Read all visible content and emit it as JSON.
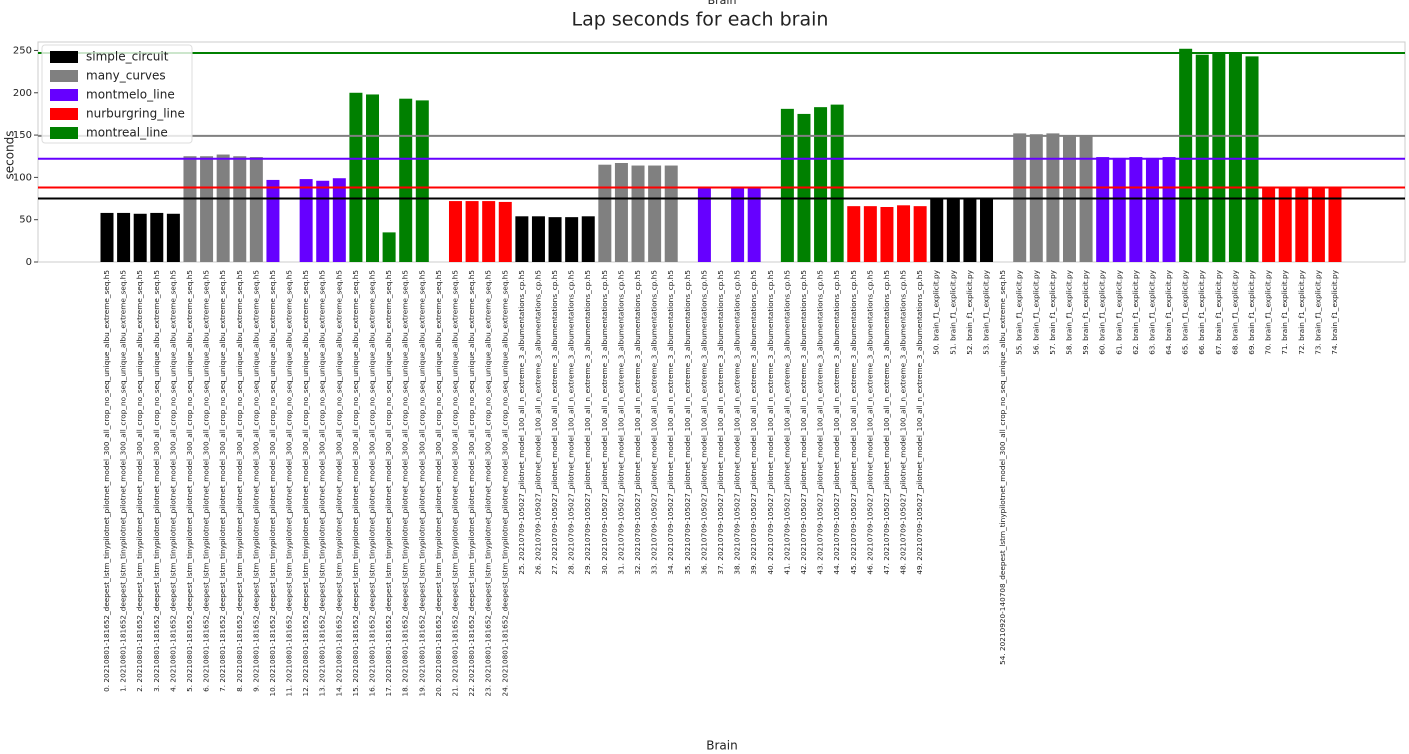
{
  "chart_data": {
    "type": "bar",
    "title": "Lap seconds for each brain",
    "x_label": "Brain",
    "y_label": "seconds",
    "ylim": [
      0,
      260
    ],
    "yticks": [
      0,
      50,
      100,
      150,
      200,
      250
    ],
    "legend": "upper left",
    "categories": [
      "0. 20210801-181652_deepest_lstm_tinypilotnet_pilotnet_model_300_all_crop_no_seq_unique_albu_extreme_seq.h5",
      "1. 20210801-181652_deepest_lstm_tinypilotnet_pilotnet_model_300_all_crop_no_seq_unique_albu_extreme_seq.h5",
      "2. 20210801-181652_deepest_lstm_tinypilotnet_pilotnet_model_300_all_crop_no_seq_unique_albu_extreme_seq.h5",
      "3. 20210801-181652_deepest_lstm_tinypilotnet_pilotnet_model_300_all_crop_no_seq_unique_albu_extreme_seq.h5",
      "4. 20210801-181652_deepest_lstm_tinypilotnet_pilotnet_model_300_all_crop_no_seq_unique_albu_extreme_seq.h5",
      "5. 20210801-181652_deepest_lstm_tinypilotnet_pilotnet_model_300_all_crop_no_seq_unique_albu_extreme_seq.h5",
      "6. 20210801-181652_deepest_lstm_tinypilotnet_pilotnet_model_300_all_crop_no_seq_unique_albu_extreme_seq.h5",
      "7. 20210801-181652_deepest_lstm_tinypilotnet_pilotnet_model_300_all_crop_no_seq_unique_albu_extreme_seq.h5",
      "8. 20210801-181652_deepest_lstm_tinypilotnet_pilotnet_model_300_all_crop_no_seq_unique_albu_extreme_seq.h5",
      "9. 20210801-181652_deepest_lstm_tinypilotnet_pilotnet_model_300_all_crop_no_seq_unique_albu_extreme_seq.h5",
      "10. 20210801-181652_deepest_lstm_tinypilotnet_pilotnet_model_300_all_crop_no_seq_unique_albu_extreme_seq.h5",
      "11. 20210801-181652_deepest_lstm_tinypilotnet_pilotnet_model_300_all_crop_no_seq_unique_albu_extreme_seq.h5",
      "12. 20210801-181652_deepest_lstm_tinypilotnet_pilotnet_model_300_all_crop_no_seq_unique_albu_extreme_seq.h5",
      "13. 20210801-181652_deepest_lstm_tinypilotnet_pilotnet_model_300_all_crop_no_seq_unique_albu_extreme_seq.h5",
      "14. 20210801-181652_deepest_lstm_tinypilotnet_pilotnet_model_300_all_crop_no_seq_unique_albu_extreme_seq.h5",
      "15. 20210801-181652_deepest_lstm_tinypilotnet_pilotnet_model_300_all_crop_no_seq_unique_albu_extreme_seq.h5",
      "16. 20210801-181652_deepest_lstm_tinypilotnet_pilotnet_model_300_all_crop_no_seq_unique_albu_extreme_seq.h5",
      "17. 20210801-181652_deepest_lstm_tinypilotnet_pilotnet_model_300_all_crop_no_seq_unique_albu_extreme_seq.h5",
      "18. 20210801-181652_deepest_lstm_tinypilotnet_pilotnet_model_300_all_crop_no_seq_unique_albu_extreme_seq.h5",
      "19. 20210801-181652_deepest_lstm_tinypilotnet_pilotnet_model_300_all_crop_no_seq_unique_albu_extreme_seq.h5",
      "20. 20210801-181652_deepest_lstm_tinypilotnet_pilotnet_model_300_all_crop_no_seq_unique_albu_extreme_seq.h5",
      "21. 20210801-181652_deepest_lstm_tinypilotnet_pilotnet_model_300_all_crop_no_seq_unique_albu_extreme_seq.h5",
      "22. 20210801-181652_deepest_lstm_tinypilotnet_pilotnet_model_300_all_crop_no_seq_unique_albu_extreme_seq.h5",
      "23. 20210801-181652_deepest_lstm_tinypilotnet_pilotnet_model_300_all_crop_no_seq_unique_albu_extreme_seq.h5",
      "24. 20210801-181652_deepest_lstm_tinypilotnet_pilotnet_model_300_all_crop_no_seq_unique_albu_extreme_seq.h5",
      "25. 20210709-105027_pilotnet_model_100_all_n_extreme_3_albumentations_cp.h5",
      "26. 20210709-105027_pilotnet_model_100_all_n_extreme_3_albumentations_cp.h5",
      "27. 20210709-105027_pilotnet_model_100_all_n_extreme_3_albumentations_cp.h5",
      "28. 20210709-105027_pilotnet_model_100_all_n_extreme_3_albumentations_cp.h5",
      "29. 20210709-105027_pilotnet_model_100_all_n_extreme_3_albumentations_cp.h5",
      "30. 20210709-105027_pilotnet_model_100_all_n_extreme_3_albumentations_cp.h5",
      "31. 20210709-105027_pilotnet_model_100_all_n_extreme_3_albumentations_cp.h5",
      "32. 20210709-105027_pilotnet_model_100_all_n_extreme_3_albumentations_cp.h5",
      "33. 20210709-105027_pilotnet_model_100_all_n_extreme_3_albumentations_cp.h5",
      "34. 20210709-105027_pilotnet_model_100_all_n_extreme_3_albumentations_cp.h5",
      "35. 20210709-105027_pilotnet_model_100_all_n_extreme_3_albumentations_cp.h5",
      "36. 20210709-105027_pilotnet_model_100_all_n_extreme_3_albumentations_cp.h5",
      "37. 20210709-105027_pilotnet_model_100_all_n_extreme_3_albumentations_cp.h5",
      "38. 20210709-105027_pilotnet_model_100_all_n_extreme_3_albumentations_cp.h5",
      "39. 20210709-105027_pilotnet_model_100_all_n_extreme_3_albumentations_cp.h5",
      "40. 20210709-105027_pilotnet_model_100_all_n_extreme_3_albumentations_cp.h5",
      "41. 20210709-105027_pilotnet_model_100_all_n_extreme_3_albumentations_cp.h5",
      "42. 20210709-105027_pilotnet_model_100_all_n_extreme_3_albumentations_cp.h5",
      "43. 20210709-105027_pilotnet_model_100_all_n_extreme_3_albumentations_cp.h5",
      "44. 20210709-105027_pilotnet_model_100_all_n_extreme_3_albumentations_cp.h5",
      "45. 20210709-105027_pilotnet_model_100_all_n_extreme_3_albumentations_cp.h5",
      "46. 20210709-105027_pilotnet_model_100_all_n_extreme_3_albumentations_cp.h5",
      "47. 20210709-105027_pilotnet_model_100_all_n_extreme_3_albumentations_cp.h5",
      "48. 20210709-105027_pilotnet_model_100_all_n_extreme_3_albumentations_cp.h5",
      "49. 20210709-105027_pilotnet_model_100_all_n_extreme_3_albumentations_cp.h5",
      "50. brain_f1_explicit.py",
      "51. brain_f1_explicit.py",
      "52. brain_f1_explicit.py",
      "53. brain_f1_explicit.py",
      "54. 20210920-140708_deepest_lstm_tinypilotnet_model_300_all_crop_no_seq_unique_albu_extreme_seq.h5",
      "55. brain_f1_explicit.py",
      "56. brain_f1_explicit.py",
      "57. brain_f1_explicit.py",
      "58. brain_f1_explicit.py",
      "59. brain_f1_explicit.py",
      "60. brain_f1_explicit.py",
      "61. brain_f1_explicit.py",
      "62. brain_f1_explicit.py",
      "63. brain_f1_explicit.py",
      "64. brain_f1_explicit.py",
      "65. brain_f1_explicit.py",
      "66. brain_f1_explicit.py",
      "67. brain_f1_explicit.py",
      "68. brain_f1_explicit.py",
      "69. brain_f1_explicit.py",
      "70. brain_f1_explicit.py",
      "71. brain_f1_explicit.py",
      "72. brain_f1_explicit.py",
      "73. brain_f1_explicit.py",
      "74. brain_f1_explicit.py"
    ],
    "series": [
      {
        "name": "simple_circuit",
        "color": "#000000",
        "reference": 75,
        "values": [
          58,
          58,
          57,
          58,
          57,
          null,
          null,
          null,
          null,
          null,
          null,
          null,
          null,
          null,
          null,
          null,
          null,
          null,
          null,
          null,
          null,
          null,
          null,
          null,
          null,
          54,
          54,
          53,
          53,
          54,
          null,
          null,
          null,
          null,
          null,
          null,
          null,
          null,
          null,
          null,
          null,
          null,
          null,
          null,
          null,
          null,
          null,
          null,
          null,
          null,
          74,
          74,
          74,
          74,
          null,
          null,
          null,
          null,
          null,
          null,
          null,
          null,
          null,
          null,
          null,
          null,
          null,
          null,
          null,
          null,
          null,
          null,
          null,
          null,
          null
        ]
      },
      {
        "name": "many_curves",
        "color": "#808080",
        "reference": 149,
        "values": [
          null,
          null,
          null,
          null,
          null,
          125,
          125,
          127,
          125,
          124,
          null,
          null,
          null,
          null,
          null,
          null,
          null,
          null,
          null,
          null,
          null,
          null,
          null,
          null,
          null,
          null,
          null,
          null,
          null,
          null,
          115,
          117,
          114,
          114,
          114,
          null,
          null,
          null,
          null,
          null,
          null,
          null,
          null,
          null,
          null,
          null,
          null,
          null,
          null,
          null,
          null,
          null,
          null,
          null,
          null,
          152,
          151,
          152,
          150,
          150,
          null,
          null,
          null,
          null,
          null,
          null,
          null,
          null,
          null,
          null,
          null,
          null,
          null,
          null,
          null
        ]
      },
      {
        "name": "montmelo_line",
        "color": "#6600ff",
        "reference": 122,
        "values": [
          null,
          null,
          null,
          null,
          null,
          null,
          null,
          null,
          null,
          null,
          97,
          null,
          98,
          96,
          99,
          null,
          null,
          null,
          null,
          null,
          null,
          null,
          null,
          null,
          null,
          null,
          null,
          null,
          null,
          null,
          null,
          null,
          null,
          null,
          null,
          null,
          89,
          null,
          87,
          87,
          null,
          null,
          null,
          null,
          null,
          null,
          null,
          null,
          null,
          null,
          null,
          null,
          null,
          null,
          null,
          null,
          null,
          null,
          null,
          null,
          124,
          123,
          124,
          123,
          124,
          null,
          null,
          null,
          null,
          null,
          null,
          null,
          null,
          null,
          null
        ]
      },
      {
        "name": "nurburgring_line",
        "color": "#ff0000",
        "reference": 88,
        "values": [
          null,
          null,
          null,
          null,
          null,
          null,
          null,
          null,
          null,
          null,
          null,
          null,
          null,
          null,
          null,
          null,
          null,
          null,
          null,
          null,
          null,
          72,
          72,
          72,
          71,
          null,
          null,
          null,
          null,
          null,
          null,
          null,
          null,
          null,
          null,
          null,
          null,
          null,
          null,
          null,
          null,
          null,
          null,
          null,
          null,
          66,
          66,
          65,
          67,
          66,
          null,
          null,
          null,
          null,
          null,
          null,
          null,
          null,
          null,
          null,
          null,
          null,
          null,
          null,
          null,
          null,
          null,
          null,
          null,
          null,
          87,
          87,
          87,
          87,
          87
        ]
      },
      {
        "name": "montreal_line",
        "color": "#008000",
        "reference": 247,
        "values": [
          null,
          null,
          null,
          null,
          null,
          null,
          null,
          null,
          null,
          null,
          null,
          null,
          null,
          null,
          null,
          200,
          198,
          35,
          193,
          191,
          null,
          null,
          null,
          null,
          null,
          null,
          null,
          null,
          null,
          null,
          null,
          null,
          null,
          null,
          null,
          null,
          null,
          null,
          null,
          null,
          null,
          181,
          175,
          183,
          186,
          null,
          null,
          null,
          null,
          null,
          null,
          null,
          null,
          null,
          null,
          null,
          null,
          null,
          null,
          null,
          null,
          null,
          null,
          null,
          null,
          252,
          245,
          247,
          248,
          243,
          null,
          null,
          null,
          null,
          null
        ]
      }
    ]
  }
}
